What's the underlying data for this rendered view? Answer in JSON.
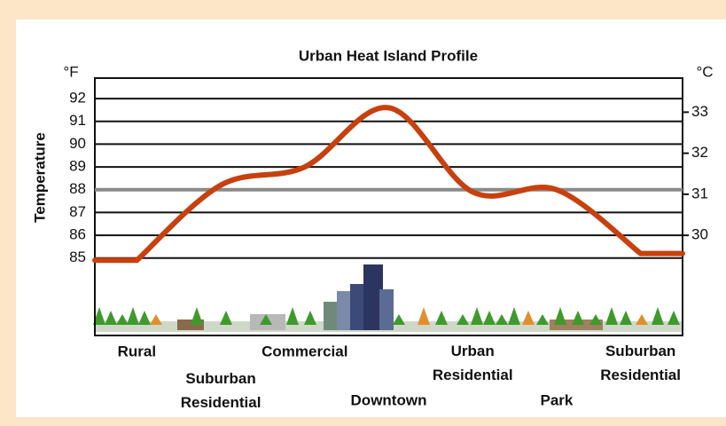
{
  "chart_data": {
    "type": "line",
    "title": "Urban Heat Island Profile",
    "y_label": "Temperature",
    "y_unit": "°F",
    "y2_unit": "°C",
    "categories": [
      "Rural",
      "Suburban Residential",
      "Commercial",
      "Downtown",
      "Urban Residential",
      "Park",
      "Suburban Residential"
    ],
    "series": [
      {
        "color": "#c8400e",
        "values": [
          84.9,
          88.2,
          89.0,
          91.6,
          87.9,
          88.0,
          85.2
        ]
      }
    ],
    "ylim": [
      81.6,
      92.9
    ],
    "yticks": [
      85,
      86,
      87,
      88,
      89,
      90,
      91,
      92
    ],
    "y2lim": [
      27.56,
      33.83
    ],
    "y2ticks": [
      30,
      31,
      32,
      33
    ],
    "grid": true,
    "highlight_gridline": 88
  }
}
